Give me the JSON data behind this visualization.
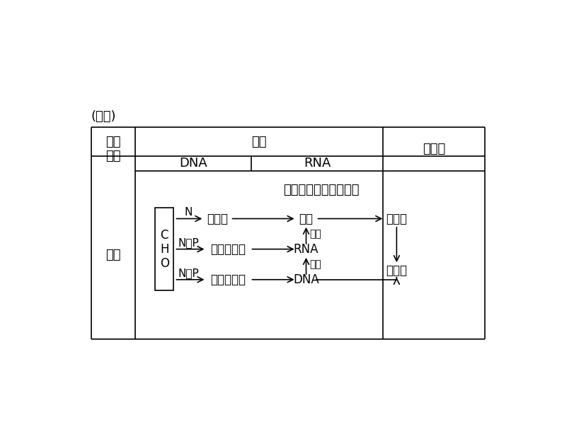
{
  "bg_color": "#ffffff",
  "title_text": "(续表)",
  "row_label": "联系",
  "diagram_title": "核酸控制蛋白质的合成",
  "cho_label_lines": [
    "C",
    "H",
    "O"
  ],
  "row1_label": "N",
  "row2_label": "N、P",
  "row3_label": "N、P",
  "node1": "氨基酸",
  "node2": "核糖核苷酸",
  "node3": "脱氧核苷酸",
  "node4": "肽链",
  "node5": "RNA",
  "node6": "DNA",
  "node7": "蛋白质",
  "node8": "染色体",
  "label_fanyi": "翻译",
  "label_zhuanlu": "转录",
  "header_bijiao": "比较\n项目",
  "header_hesuang": "核酸",
  "header_DNA": "DNA",
  "header_RNA": "RNA",
  "header_danbaizhi": "蛋白质"
}
